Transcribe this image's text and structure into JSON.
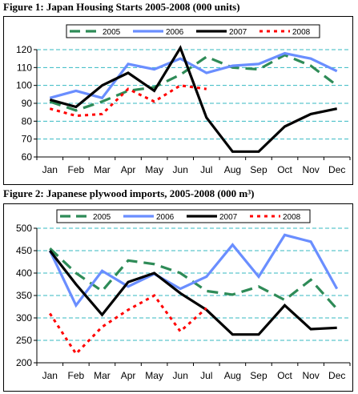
{
  "figures": [
    {
      "title": "Figure 1: Japan Housing Starts 2005-2008 (000 units)"
    },
    {
      "title": "Figure 2: Japanese plywood imports, 2005-2008 (000 m³)"
    }
  ],
  "chart_data": [
    {
      "type": "line",
      "title": "Figure 1: Japan Housing Starts 2005-2008 (000 units)",
      "categories": [
        "Jan",
        "Feb",
        "Mar",
        "Apr",
        "May",
        "Jun",
        "Jul",
        "Aug",
        "Sep",
        "Oct",
        "Nov",
        "Dec"
      ],
      "ylim": [
        60,
        120
      ],
      "yticks": [
        60,
        70,
        80,
        90,
        100,
        110,
        120
      ],
      "grid": true,
      "legend_position": "top",
      "series": [
        {
          "name": "2005",
          "color": "#2e8b57",
          "style": "dash",
          "values": [
            91,
            86,
            91,
            97,
            99,
            106,
            116,
            110,
            109,
            117,
            111,
            100
          ]
        },
        {
          "name": "2006",
          "color": "#6a8eff",
          "style": "solid",
          "values": [
            93,
            97,
            93,
            112,
            109,
            115,
            107,
            111,
            112,
            118,
            115,
            108
          ]
        },
        {
          "name": "2007",
          "color": "#000000",
          "style": "solid",
          "values": [
            92,
            88,
            100,
            107,
            97,
            121,
            82,
            63,
            63,
            77,
            84,
            87
          ]
        },
        {
          "name": "2008",
          "color": "#ff0000",
          "style": "dot",
          "values": [
            87,
            83,
            84,
            98,
            91,
            100,
            98,
            null,
            null,
            null,
            null,
            null
          ]
        }
      ]
    },
    {
      "type": "line",
      "title": "Figure 2: Japanese plywood imports, 2005-2008 (000 m³)",
      "categories": [
        "Jan",
        "Feb",
        "Mar",
        "Apr",
        "May",
        "Jun",
        "Jul",
        "Aug",
        "Sep",
        "Oct",
        "Nov",
        "Dec"
      ],
      "ylim": [
        200,
        500
      ],
      "yticks": [
        200,
        250,
        300,
        350,
        400,
        450,
        500
      ],
      "grid": true,
      "legend_position": "top",
      "series": [
        {
          "name": "2005",
          "color": "#2e8b57",
          "style": "dash",
          "values": [
            455,
            400,
            360,
            428,
            420,
            400,
            360,
            352,
            370,
            340,
            385,
            320
          ]
        },
        {
          "name": "2006",
          "color": "#6a8eff",
          "style": "solid",
          "values": [
            450,
            328,
            405,
            370,
            398,
            365,
            392,
            463,
            392,
            485,
            470,
            365
          ]
        },
        {
          "name": "2007",
          "color": "#000000",
          "style": "solid",
          "values": [
            450,
            375,
            307,
            380,
            400,
            355,
            318,
            263,
            263,
            328,
            275,
            278
          ]
        },
        {
          "name": "2008",
          "color": "#ff0000",
          "style": "dot",
          "values": [
            310,
            220,
            280,
            318,
            350,
            270,
            322,
            null,
            null,
            null,
            null,
            null
          ]
        }
      ]
    }
  ]
}
